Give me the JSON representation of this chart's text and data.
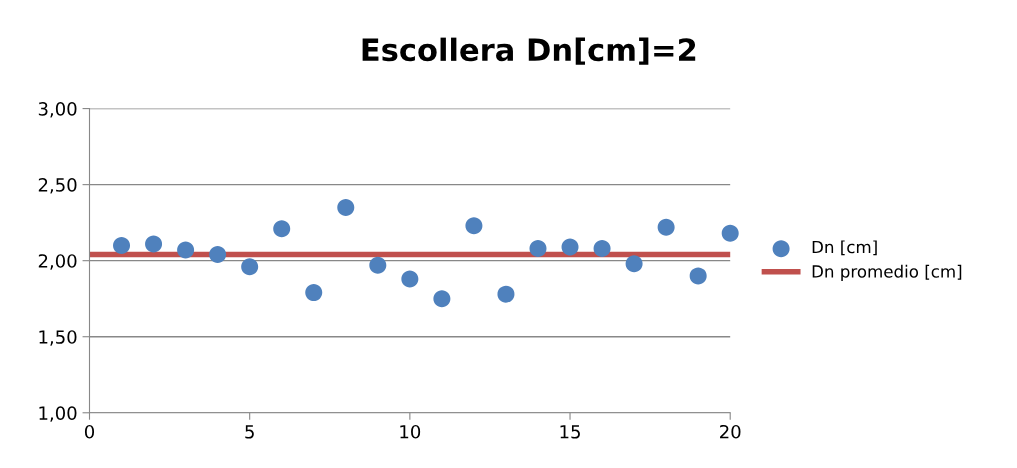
{
  "chart_data": {
    "type": "scatter",
    "title": "Escollera Dn[cm]=2",
    "series": [
      {
        "name": "Dn [cm]",
        "color": "#4f81bd",
        "marker": "circle",
        "x": [
          1,
          2,
          3,
          4,
          5,
          6,
          7,
          8,
          9,
          10,
          11,
          12,
          13,
          14,
          15,
          16,
          17,
          18,
          19,
          20
        ],
        "values": [
          2.1,
          2.11,
          2.07,
          2.04,
          1.96,
          2.21,
          1.79,
          2.35,
          1.97,
          1.88,
          1.75,
          2.23,
          1.78,
          2.08,
          2.09,
          2.08,
          1.98,
          2.22,
          1.9,
          2.18
        ]
      },
      {
        "name": "Dn promedio [cm]",
        "type": "line",
        "color": "#c0504d",
        "marker": "none",
        "x": [
          0,
          20
        ],
        "values": [
          2.04,
          2.04
        ]
      }
    ],
    "xlim": [
      0,
      20
    ],
    "xticks": [
      0,
      5,
      10,
      15,
      20
    ],
    "ylim": [
      1,
      3
    ],
    "yticks": [
      {
        "value": 1,
        "label": "1,00"
      },
      {
        "value": 1.5,
        "label": "1,50"
      },
      {
        "value": 2,
        "label": "2,00"
      },
      {
        "value": 2.5,
        "label": "2,50"
      },
      {
        "value": 3,
        "label": "3,00"
      }
    ],
    "grid": "y",
    "legend": "right"
  }
}
